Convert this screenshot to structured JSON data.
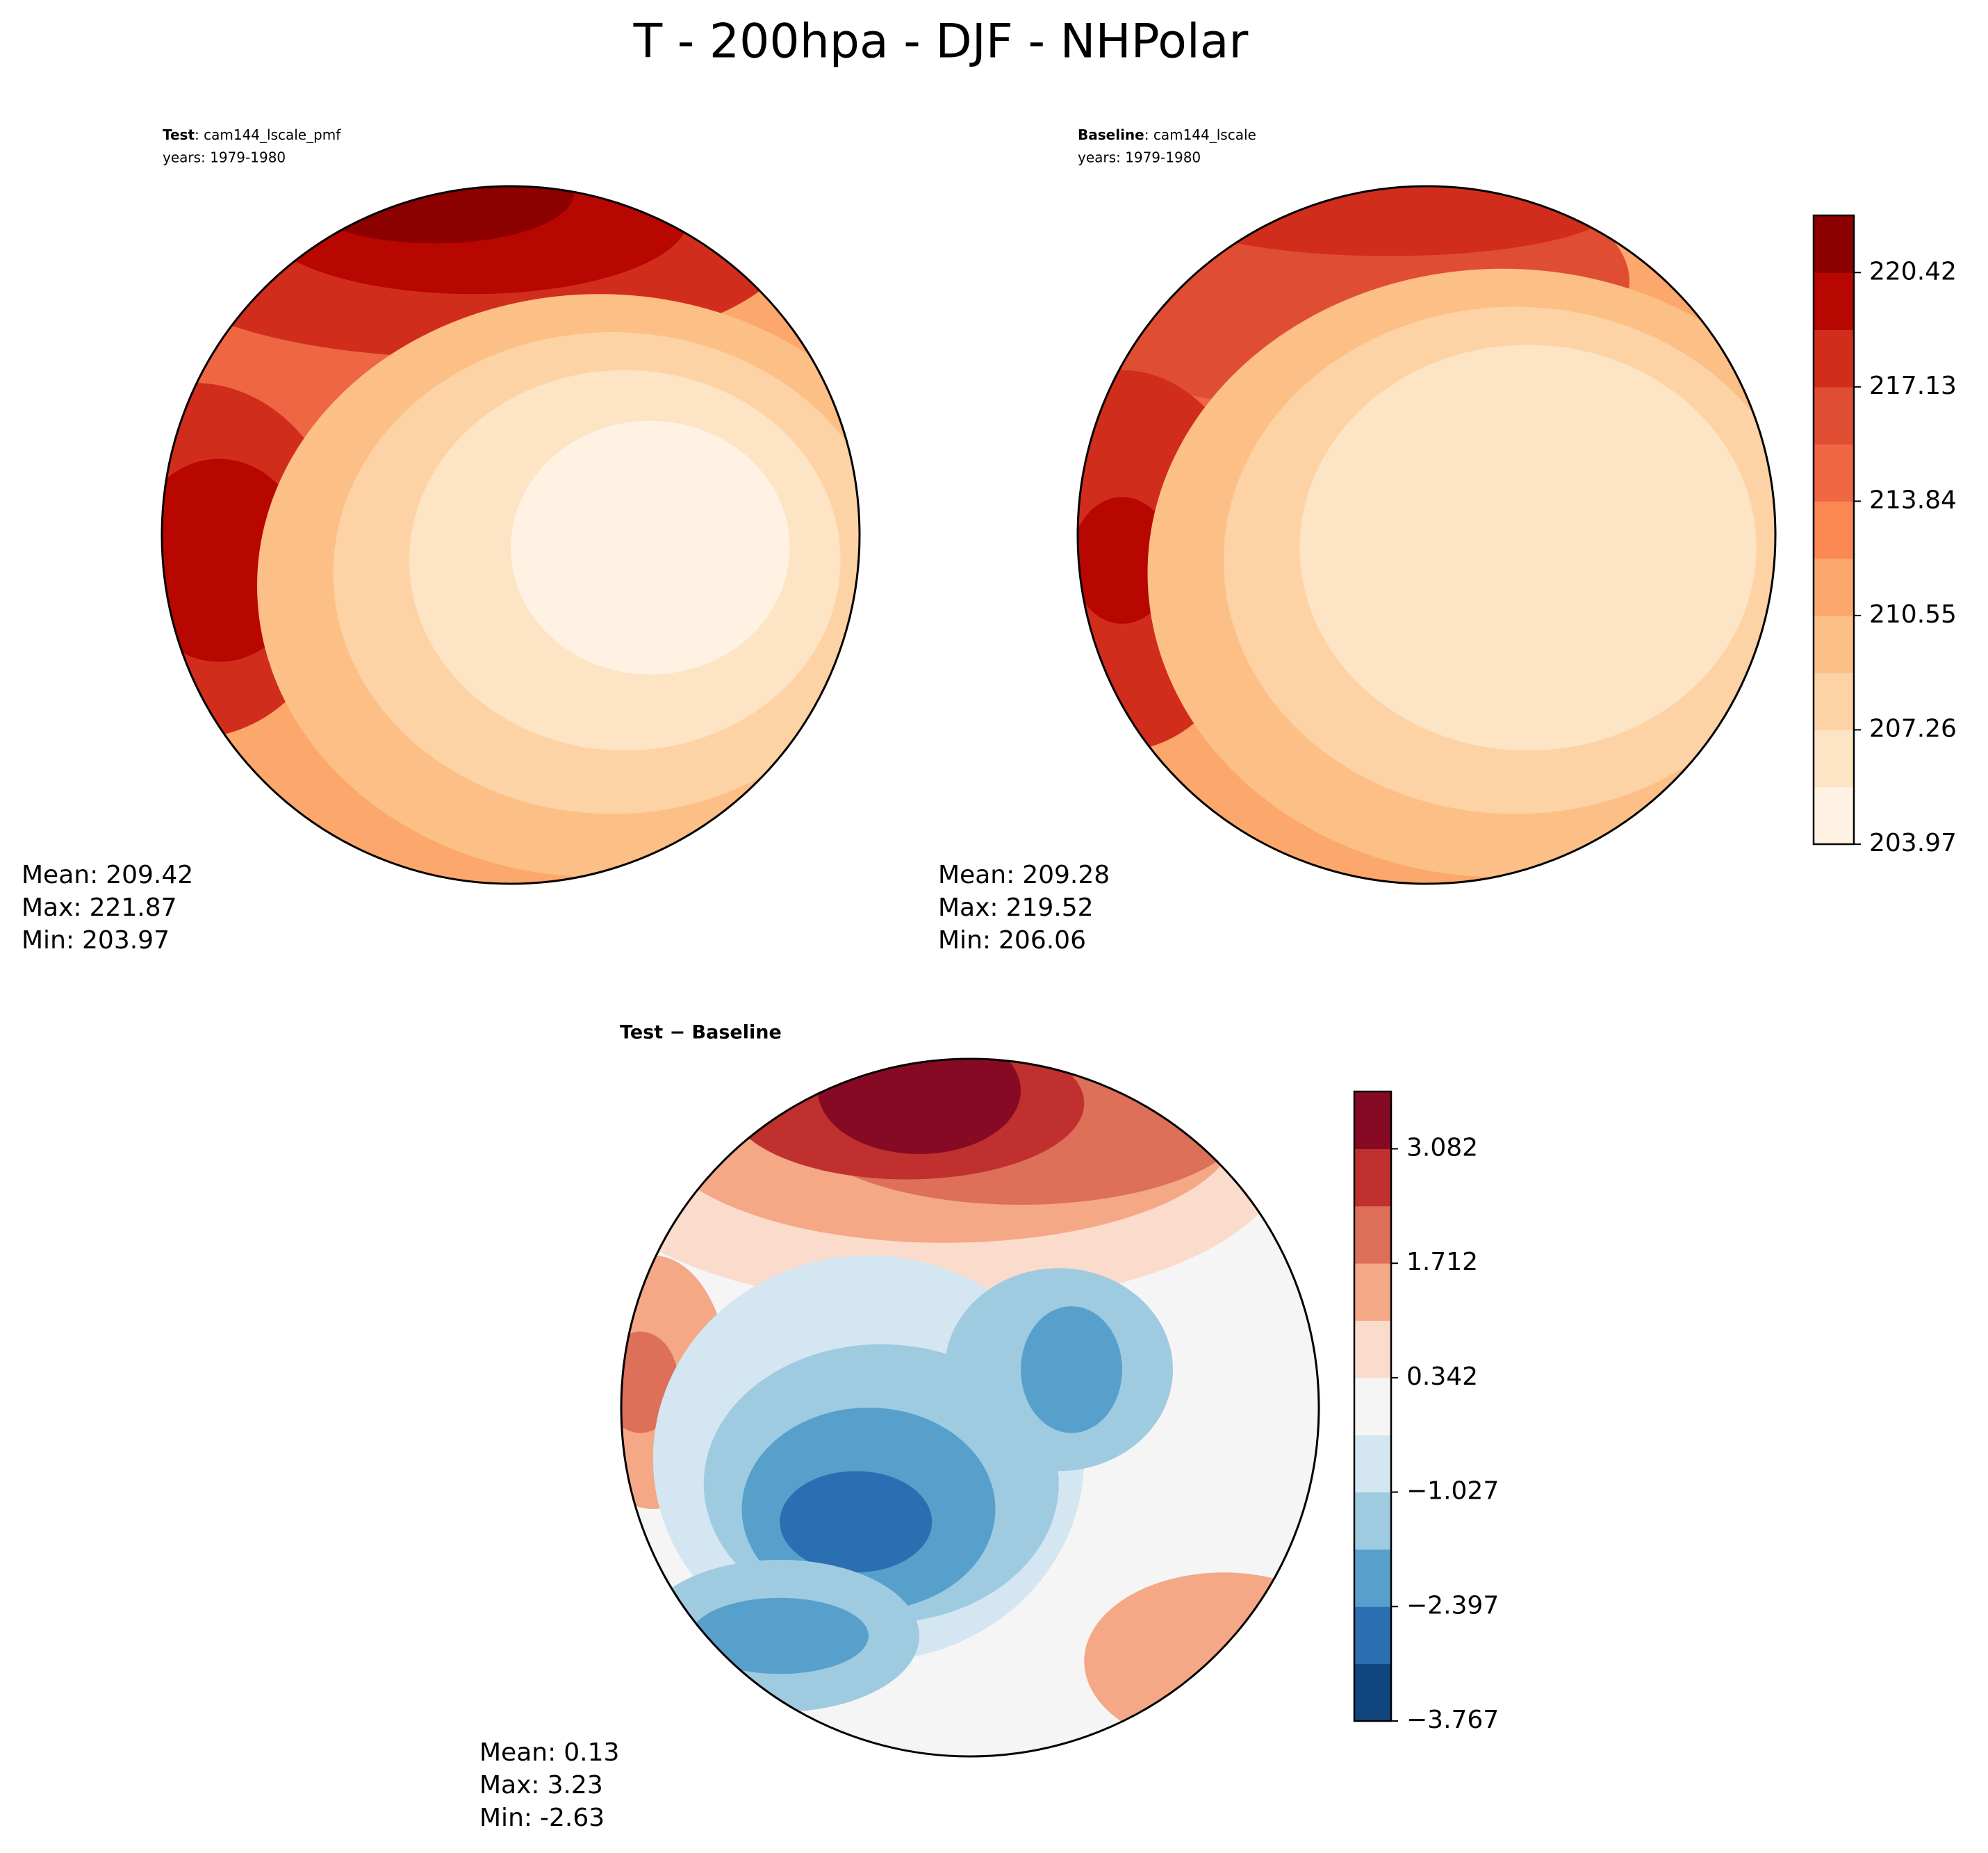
{
  "title": "T - 200hpa - DJF - NHPolar",
  "chart_data": [
    {
      "type": "map",
      "title": "Test",
      "subtitle": ": cam144_lscale_pmf",
      "years": "years: 1979-1980",
      "stats": [
        {
          "label": "Mean:",
          "value": 209.42
        },
        {
          "label": "Max:",
          "value": 221.87
        },
        {
          "label": "Min:",
          "value": 203.97
        }
      ]
    },
    {
      "type": "map",
      "title": "Baseline",
      "subtitle": ": cam144_lscale",
      "years": "years: 1979-1980",
      "stats": [
        {
          "label": "Mean:",
          "value": 209.28
        },
        {
          "label": "Max:",
          "value": 219.52
        },
        {
          "label": "Min:",
          "value": 206.06
        }
      ],
      "colorbar": {
        "clim": [
          203.97,
          222.065
        ],
        "ticks": [
          203.97,
          207.26,
          210.55,
          213.84,
          217.13,
          220.42
        ],
        "colors": [
          "#fff2e2",
          "#fde4c4",
          "#fdd3a5",
          "#fcbf86",
          "#fca76b",
          "#fb8752",
          "#ef6642",
          "#df4d33",
          "#d12d1d",
          "#b80600",
          "#8c0000"
        ]
      }
    },
    {
      "type": "map",
      "title": "Test − Baseline",
      "stats": [
        {
          "label": "Mean:",
          "value": 0.13
        },
        {
          "label": "Max:",
          "value": 3.23
        },
        {
          "label": "Min:",
          "value": -2.63
        }
      ],
      "colorbar": {
        "clim": [
          -3.767,
          3.768
        ],
        "ticks": [
          {
            "value": -3.767,
            "label": "−3.767"
          },
          {
            "value": -2.397,
            "label": "−2.397"
          },
          {
            "value": -1.027,
            "label": "−1.027"
          },
          0.342,
          1.712,
          3.082
        ],
        "colors": [
          "#11457e",
          "#2a6fb2",
          "#58a0cc",
          "#9fcbe1",
          "#d4e6f1",
          "#f5f5f5",
          "#fbdbcb",
          "#f4a886",
          "#de6f58",
          "#c0302f",
          "#870a24"
        ]
      }
    }
  ]
}
